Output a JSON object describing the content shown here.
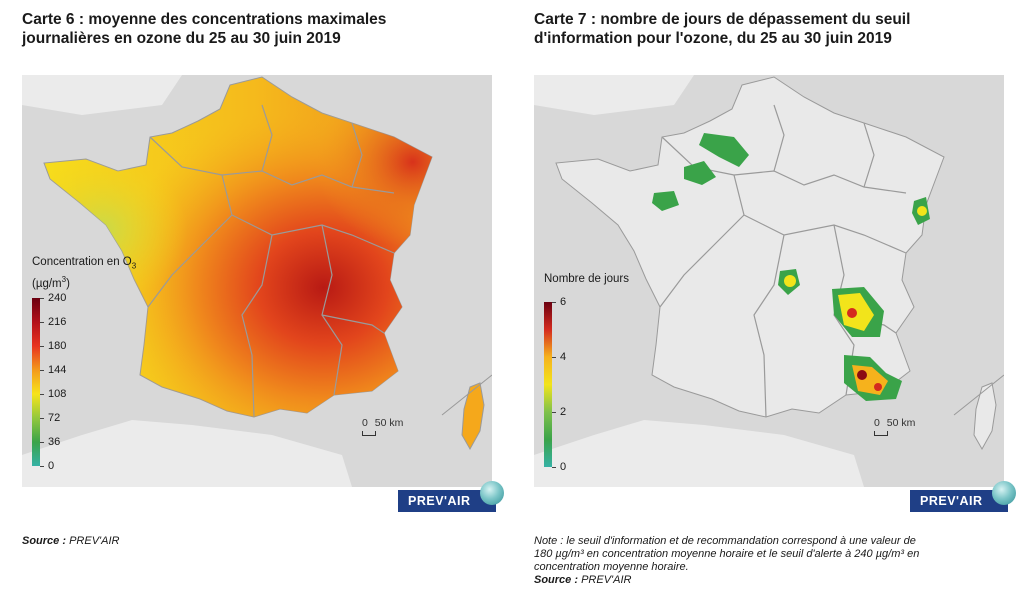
{
  "left": {
    "title_line1": "Carte 6 : moyenne des concentrations maximales",
    "title_line2": "journalières en ozone du 25 au 30 juin 2019",
    "legend": {
      "title_line1": "Concentration en O",
      "title_sub": "3",
      "title_line2": "(µg/m",
      "title_sup": "3",
      "title_close": ")",
      "ticks": [
        "240",
        "216",
        "180",
        "144",
        "108",
        "72",
        "36",
        "0"
      ],
      "colors": [
        "#6b0010",
        "#b3101a",
        "#e8331f",
        "#f39a1c",
        "#f7e41b",
        "#93c83c",
        "#3aa349",
        "#35b1a5"
      ]
    },
    "scale": {
      "zero": "0",
      "distance": "50 km"
    },
    "logo": "PREV'AIR",
    "source_label": "Source :",
    "source_value": "PREV'AIR"
  },
  "right": {
    "title_line1": "Carte 7 : nombre de jours de dépassement du seuil",
    "title_line2": "d'information pour l'ozone, du 25 au 30 juin 2019",
    "legend": {
      "title": "Nombre de jours",
      "ticks": [
        "6",
        "4",
        "2",
        "0"
      ],
      "colors": [
        "#6b0010",
        "#d42a1e",
        "#f6b21c",
        "#f2e41b",
        "#7fc14a",
        "#3aa349",
        "#35b1a5"
      ]
    },
    "scale": {
      "zero": "0",
      "distance": "50 km"
    },
    "logo": "PREV'AIR",
    "note_line1": "Note : le seuil d'information et de recommandation correspond à une valeur de",
    "note_line2": "180 µg/m³ en concentration moyenne horaire et le seuil d'alerte à 240 µg/m³ en",
    "note_line3": "concentration moyenne horaire.",
    "source_label": "Source :",
    "source_value": "PREV'AIR"
  },
  "colors": {
    "background": "#ebebeb",
    "land_gray": "#d8d8d8",
    "border": "#9a9a9a",
    "logo_blue": "#1f3f86"
  }
}
